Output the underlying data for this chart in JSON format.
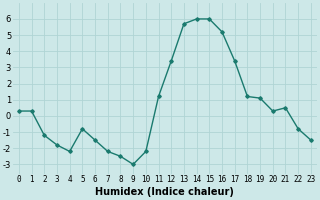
{
  "x": [
    0,
    1,
    2,
    3,
    4,
    5,
    6,
    7,
    8,
    9,
    10,
    11,
    12,
    13,
    14,
    15,
    16,
    17,
    18,
    19,
    20,
    21,
    22,
    23
  ],
  "y": [
    0.3,
    0.3,
    -1.2,
    -1.8,
    -2.2,
    -0.8,
    -1.5,
    -2.2,
    -2.5,
    -3.0,
    -2.2,
    1.2,
    3.4,
    5.7,
    6.0,
    6.0,
    5.2,
    3.4,
    1.2,
    1.1,
    0.3,
    0.5,
    -0.8,
    -1.5
  ],
  "line_color": "#1a7a6e",
  "marker": "D",
  "marker_size": 1.8,
  "linewidth": 1.0,
  "bg_color": "#cde8e8",
  "grid_color": "#b0d4d4",
  "xlabel": "Humidex (Indice chaleur)",
  "xlabel_fontsize": 7.0,
  "xlabel_weight": "bold",
  "yticks": [
    -3,
    -2,
    -1,
    0,
    1,
    2,
    3,
    4,
    5,
    6
  ],
  "xtick_labels": [
    "0",
    "1",
    "2",
    "3",
    "4",
    "5",
    "6",
    "7",
    "8",
    "9",
    "10",
    "11",
    "12",
    "13",
    "14",
    "15",
    "16",
    "17",
    "18",
    "19",
    "20",
    "21",
    "22",
    "23"
  ],
  "ylim": [
    -3.6,
    7.0
  ],
  "xlim": [
    -0.5,
    23.5
  ],
  "tick_fontsize": 5.5,
  "ytick_fontsize": 6.0
}
